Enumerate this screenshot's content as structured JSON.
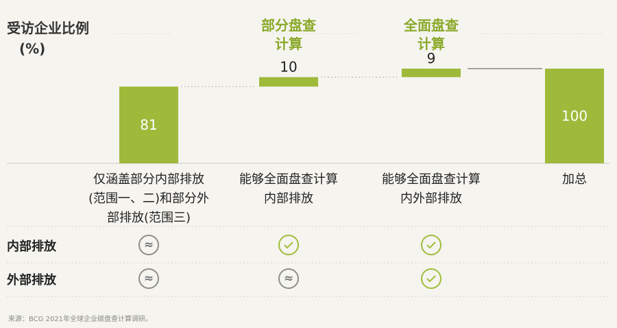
{
  "chart_data": {
    "type": "bar",
    "subtype": "waterfall",
    "ylabel_line1": "受访企业比例",
    "ylabel_line2": "(%)",
    "categories": [
      [
        "仅涵盖部分内部排放",
        "(范围一、二)和部分外",
        "部排放(范围三)"
      ],
      [
        "能够全面盘查计算",
        "内部排放"
      ],
      [
        "能够全面盘查计算",
        "内外部排放"
      ],
      [
        "加总"
      ]
    ],
    "values": [
      81,
      10,
      9,
      100
    ],
    "value_labels": [
      "81",
      "10",
      "9",
      "100"
    ],
    "bar_kind": [
      "base",
      "increment",
      "increment",
      "total"
    ],
    "ylim": [
      0,
      100
    ],
    "column_headers": [
      {
        "col": 1,
        "line1": "部分盘查",
        "line2": "计算"
      },
      {
        "col": 2,
        "line1": "全面盘查",
        "line2": "计算"
      }
    ],
    "colors": {
      "bar": "#9fb93a",
      "header": "#8aa929",
      "check": "#9fbd3a",
      "approx": "#8d8d8d"
    }
  },
  "matrix": {
    "rows": [
      {
        "label": "内部排放",
        "marks": [
          "approx",
          "check",
          "check"
        ]
      },
      {
        "label": "外部排放",
        "marks": [
          "approx",
          "approx",
          "check"
        ]
      }
    ],
    "approx_symbol": "≈"
  },
  "source": "来源：BCG 2021年全球企业碳盘查计算调研。"
}
